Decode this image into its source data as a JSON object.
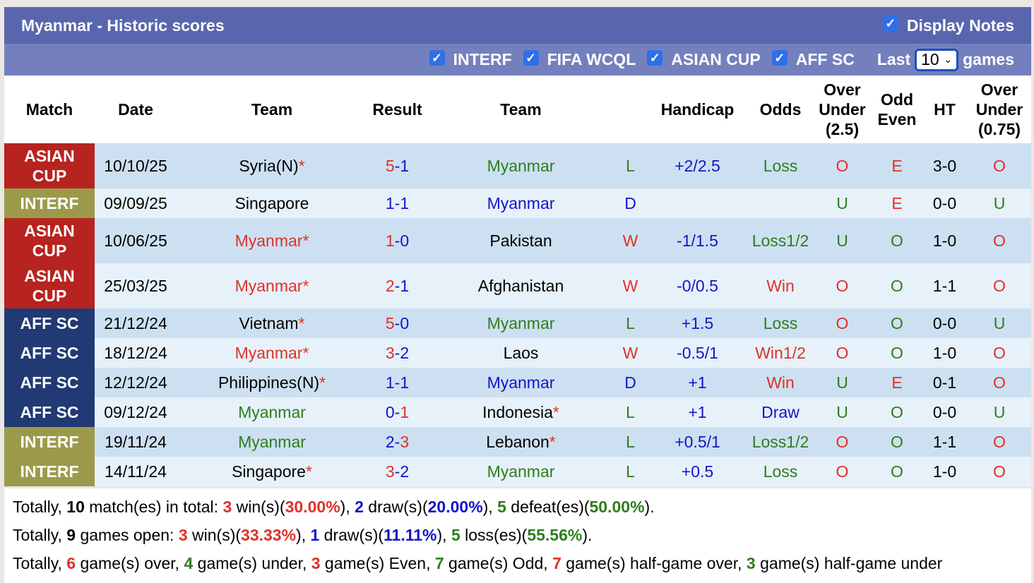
{
  "header": {
    "title": "Myanmar - Historic scores",
    "display_notes": "Display Notes"
  },
  "filters": {
    "items": [
      "INTERF",
      "FIFA WCQL",
      "ASIAN CUP",
      "AFF SC"
    ],
    "last_label": "Last",
    "games_value": "10",
    "games_label": "games"
  },
  "colors": {
    "R": "#e0302a",
    "B": "#1414c8",
    "G": "#2e7d1e",
    "K": "#000000",
    "ASIAN CUP": "#b7231f",
    "INTERF": "#9c9a4a",
    "AFF SC": "#223a74"
  },
  "columns": [
    "Match",
    "Date",
    "Team",
    "Result",
    "Team",
    "",
    "Handicap",
    "Odds",
    "Over Under (2.5)",
    "Odd Even",
    "HT",
    "Over Under (0.75)"
  ],
  "rows": [
    {
      "match": "ASIAN CUP",
      "date": "10/10/25",
      "home": "Syria(N)",
      "hstar": true,
      "hc": "K",
      "result": [
        [
          "5",
          "R"
        ],
        [
          "-1",
          "B"
        ]
      ],
      "away": "Myanmar",
      "astar": false,
      "ac": "G",
      "wl": [
        "L",
        "G"
      ],
      "hcap": "+2/2.5",
      "odds": [
        "Loss",
        "G"
      ],
      "ou": [
        "O",
        "R"
      ],
      "oe": [
        "E",
        "R"
      ],
      "ht": "3-0",
      "ou2": [
        "O",
        "R"
      ]
    },
    {
      "match": "INTERF",
      "date": "09/09/25",
      "home": "Singapore",
      "hstar": false,
      "hc": "K",
      "result": [
        [
          "1-1",
          "B"
        ]
      ],
      "away": "Myanmar",
      "astar": false,
      "ac": "B",
      "wl": [
        "D",
        "B"
      ],
      "hcap": "",
      "odds": [
        "",
        "K"
      ],
      "ou": [
        "U",
        "G"
      ],
      "oe": [
        "E",
        "R"
      ],
      "ht": "0-0",
      "ou2": [
        "U",
        "G"
      ]
    },
    {
      "match": "ASIAN CUP",
      "date": "10/06/25",
      "home": "Myanmar",
      "hstar": true,
      "hc": "R",
      "result": [
        [
          "1",
          "R"
        ],
        [
          "-0",
          "B"
        ]
      ],
      "away": "Pakistan",
      "astar": false,
      "ac": "K",
      "wl": [
        "W",
        "R"
      ],
      "hcap": "-1/1.5",
      "odds": [
        "Loss1/2",
        "G"
      ],
      "ou": [
        "U",
        "G"
      ],
      "oe": [
        "O",
        "G"
      ],
      "ht": "1-0",
      "ou2": [
        "O",
        "R"
      ]
    },
    {
      "match": "ASIAN CUP",
      "date": "25/03/25",
      "home": "Myanmar",
      "hstar": true,
      "hc": "R",
      "result": [
        [
          "2",
          "R"
        ],
        [
          "-1",
          "B"
        ]
      ],
      "away": "Afghanistan",
      "astar": false,
      "ac": "K",
      "wl": [
        "W",
        "R"
      ],
      "hcap": "-0/0.5",
      "odds": [
        "Win",
        "R"
      ],
      "ou": [
        "O",
        "R"
      ],
      "oe": [
        "O",
        "G"
      ],
      "ht": "1-1",
      "ou2": [
        "O",
        "R"
      ]
    },
    {
      "match": "AFF SC",
      "date": "21/12/24",
      "home": "Vietnam",
      "hstar": true,
      "hc": "K",
      "result": [
        [
          "5",
          "R"
        ],
        [
          "-0",
          "B"
        ]
      ],
      "away": "Myanmar",
      "astar": false,
      "ac": "G",
      "wl": [
        "L",
        "G"
      ],
      "hcap": "+1.5",
      "odds": [
        "Loss",
        "G"
      ],
      "ou": [
        "O",
        "R"
      ],
      "oe": [
        "O",
        "G"
      ],
      "ht": "0-0",
      "ou2": [
        "U",
        "G"
      ]
    },
    {
      "match": "AFF SC",
      "date": "18/12/24",
      "home": "Myanmar",
      "hstar": true,
      "hc": "R",
      "result": [
        [
          "3",
          "R"
        ],
        [
          "-2",
          "B"
        ]
      ],
      "away": "Laos",
      "astar": false,
      "ac": "K",
      "wl": [
        "W",
        "R"
      ],
      "hcap": "-0.5/1",
      "odds": [
        "Win1/2",
        "R"
      ],
      "ou": [
        "O",
        "R"
      ],
      "oe": [
        "O",
        "G"
      ],
      "ht": "1-0",
      "ou2": [
        "O",
        "R"
      ]
    },
    {
      "match": "AFF SC",
      "date": "12/12/24",
      "home": "Philippines(N)",
      "hstar": true,
      "hc": "K",
      "result": [
        [
          "1-1",
          "B"
        ]
      ],
      "away": "Myanmar",
      "astar": false,
      "ac": "B",
      "wl": [
        "D",
        "B"
      ],
      "hcap": "+1",
      "odds": [
        "Win",
        "R"
      ],
      "ou": [
        "U",
        "G"
      ],
      "oe": [
        "E",
        "R"
      ],
      "ht": "0-1",
      "ou2": [
        "O",
        "R"
      ]
    },
    {
      "match": "AFF SC",
      "date": "09/12/24",
      "home": "Myanmar",
      "hstar": false,
      "hc": "G",
      "result": [
        [
          "0-",
          "B"
        ],
        [
          "1",
          "R"
        ]
      ],
      "away": "Indonesia",
      "astar": true,
      "ac": "K",
      "wl": [
        "L",
        "G"
      ],
      "hcap": "+1",
      "odds": [
        "Draw",
        "B"
      ],
      "ou": [
        "U",
        "G"
      ],
      "oe": [
        "O",
        "G"
      ],
      "ht": "0-0",
      "ou2": [
        "U",
        "G"
      ]
    },
    {
      "match": "INTERF",
      "date": "19/11/24",
      "home": "Myanmar",
      "hstar": false,
      "hc": "G",
      "result": [
        [
          "2-",
          "B"
        ],
        [
          "3",
          "R"
        ]
      ],
      "away": "Lebanon",
      "astar": true,
      "ac": "K",
      "wl": [
        "L",
        "G"
      ],
      "hcap": "+0.5/1",
      "odds": [
        "Loss1/2",
        "G"
      ],
      "ou": [
        "O",
        "R"
      ],
      "oe": [
        "O",
        "G"
      ],
      "ht": "1-1",
      "ou2": [
        "O",
        "R"
      ]
    },
    {
      "match": "INTERF",
      "date": "14/11/24",
      "home": "Singapore",
      "hstar": true,
      "hc": "K",
      "result": [
        [
          "3",
          "R"
        ],
        [
          "-2",
          "B"
        ]
      ],
      "away": "Myanmar",
      "astar": false,
      "ac": "G",
      "wl": [
        "L",
        "G"
      ],
      "hcap": "+0.5",
      "odds": [
        "Loss",
        "G"
      ],
      "ou": [
        "O",
        "R"
      ],
      "oe": [
        "O",
        "G"
      ],
      "ht": "1-0",
      "ou2": [
        "O",
        "R"
      ]
    }
  ],
  "summary": [
    [
      [
        "Totally, ",
        "K",
        0
      ],
      [
        "10",
        "K",
        1
      ],
      [
        " match(es) in total: ",
        "K",
        0
      ],
      [
        "3",
        "R",
        1
      ],
      [
        " win(s)(",
        "K",
        0
      ],
      [
        "30.00%",
        "R",
        1
      ],
      [
        "), ",
        "K",
        0
      ],
      [
        "2",
        "B",
        1
      ],
      [
        " draw(s)(",
        "K",
        0
      ],
      [
        "20.00%",
        "B",
        1
      ],
      [
        "), ",
        "K",
        0
      ],
      [
        "5",
        "G",
        1
      ],
      [
        " defeat(es)(",
        "K",
        0
      ],
      [
        "50.00%",
        "G",
        1
      ],
      [
        ").",
        "K",
        0
      ]
    ],
    [
      [
        "Totally, ",
        "K",
        0
      ],
      [
        "9",
        "K",
        1
      ],
      [
        " games open: ",
        "K",
        0
      ],
      [
        "3",
        "R",
        1
      ],
      [
        " win(s)(",
        "K",
        0
      ],
      [
        "33.33%",
        "R",
        1
      ],
      [
        "), ",
        "K",
        0
      ],
      [
        "1",
        "B",
        1
      ],
      [
        " draw(s)(",
        "K",
        0
      ],
      [
        "11.11%",
        "B",
        1
      ],
      [
        "), ",
        "K",
        0
      ],
      [
        "5",
        "G",
        1
      ],
      [
        " loss(es)(",
        "K",
        0
      ],
      [
        "55.56%",
        "G",
        1
      ],
      [
        ").",
        "K",
        0
      ]
    ],
    [
      [
        "Totally, ",
        "K",
        0
      ],
      [
        "6",
        "R",
        1
      ],
      [
        " game(s) over, ",
        "K",
        0
      ],
      [
        "4",
        "G",
        1
      ],
      [
        " game(s) under, ",
        "K",
        0
      ],
      [
        "3",
        "R",
        1
      ],
      [
        " game(s) Even, ",
        "K",
        0
      ],
      [
        "7",
        "G",
        1
      ],
      [
        " game(s) Odd, ",
        "K",
        0
      ],
      [
        "7",
        "R",
        1
      ],
      [
        " game(s) half-game over, ",
        "K",
        0
      ],
      [
        "3",
        "G",
        1
      ],
      [
        " game(s) half-game under",
        "K",
        0
      ]
    ]
  ]
}
